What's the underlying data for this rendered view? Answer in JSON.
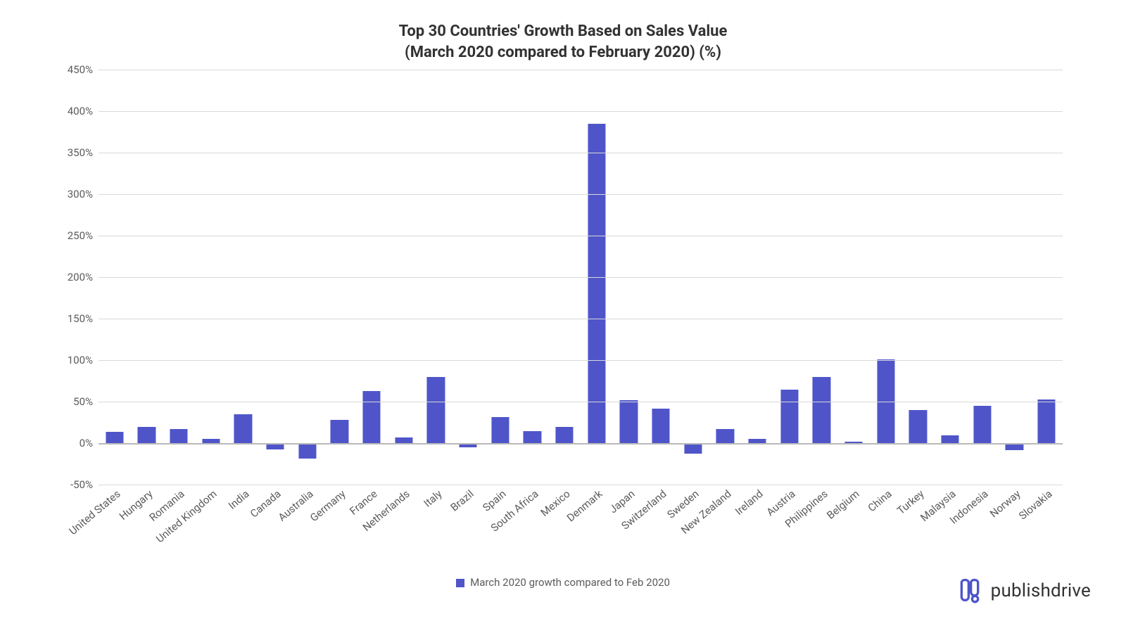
{
  "chart": {
    "type": "bar",
    "title_line1": "Top 30 Countries' Growth Based on Sales Value",
    "title_line2": "(March 2020 compared to February 2020) (%)",
    "title_fontsize": 22,
    "title_fontweight": 700,
    "title_color": "#323232",
    "ylim": [
      -50,
      450
    ],
    "ytick_step": 50,
    "yticks": [
      -50,
      0,
      50,
      100,
      150,
      200,
      250,
      300,
      350,
      400,
      450
    ],
    "ytick_suffix": "%",
    "ytick_fontsize": 15,
    "ytick_color": "#5b5b5b",
    "xlabel_fontsize": 15,
    "xlabel_color": "#5b5b5b",
    "xlabel_rotation_deg": -40,
    "grid_color": "#d8d8d8",
    "baseline_color": "#b9b9b9",
    "background_color": "#ffffff",
    "bar_color": "#4f55c9",
    "bar_width_ratio": 0.55,
    "categories": [
      "United States",
      "Hungary",
      "Romania",
      "United Kingdom",
      "India",
      "Canada",
      "Australia",
      "Germany",
      "France",
      "Netherlands",
      "Italy",
      "Brazil",
      "Spain",
      "South Africa",
      "Mexico",
      "Denmark",
      "Japan",
      "Switzerland",
      "Sweden",
      "New Zealand",
      "Ireland",
      "Austria",
      "Philippines",
      "Belgium",
      "China",
      "Turkey",
      "Malaysia",
      "Indonesia",
      "Norway",
      "Slovakia"
    ],
    "values": [
      14,
      20,
      17,
      5,
      35,
      -7,
      -18,
      28,
      63,
      7,
      80,
      -5,
      32,
      15,
      20,
      385,
      52,
      42,
      -12,
      17,
      5,
      65,
      80,
      2,
      101,
      40,
      10,
      45,
      -8,
      53
    ],
    "legend_label": "March 2020 growth compared  to Feb 2020",
    "legend_swatch_color": "#4f55c9",
    "legend_fontsize": 15,
    "legend_color": "#5b5b5b"
  },
  "brand": {
    "name": "publishdrive",
    "text_color": "#323232",
    "icon_color": "#4f55c9",
    "fontsize": 26
  }
}
